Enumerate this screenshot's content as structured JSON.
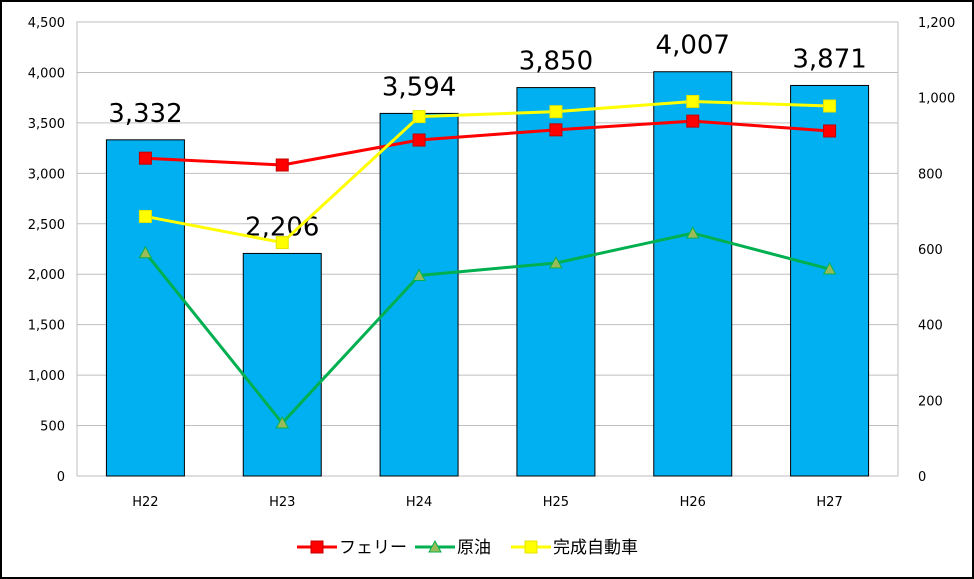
{
  "chart_data": {
    "type": "bar",
    "categories": [
      "H22",
      "H23",
      "H24",
      "H25",
      "H26",
      "H27"
    ],
    "bar_series": {
      "values": [
        3332,
        2206,
        3594,
        3850,
        4007,
        3871
      ],
      "data_labels": [
        "3,332",
        "2,206",
        "3,594",
        "3,850",
        "4,007",
        "3,871"
      ],
      "color": "#00B0F0",
      "axis": "left"
    },
    "line_series": [
      {
        "name": "フェリー",
        "values": [
          840,
          822,
          888,
          915,
          938,
          912
        ],
        "color": "#FF0000",
        "marker": "square",
        "axis": "right"
      },
      {
        "name": "原油",
        "values": [
          590,
          140,
          530,
          563,
          642,
          547
        ],
        "color": "#00B050",
        "marker": "triangle",
        "axis": "right"
      },
      {
        "name": "完成自動車",
        "values": [
          686,
          617,
          950,
          963,
          990,
          978
        ],
        "color": "#FFFF00",
        "marker": "square",
        "axis": "right"
      }
    ],
    "y_left": {
      "min": 0,
      "max": 4500,
      "step": 500,
      "tick_labels": [
        "0",
        "500",
        "1,000",
        "1,500",
        "2,000",
        "2,500",
        "3,000",
        "3,500",
        "4,000",
        "4,500"
      ]
    },
    "y_right": {
      "min": 0,
      "max": 1200,
      "step": 200,
      "tick_labels": [
        "0",
        "200",
        "400",
        "600",
        "800",
        "1,000",
        "1,200"
      ]
    },
    "grid": "horizontal",
    "legend_position": "bottom"
  }
}
